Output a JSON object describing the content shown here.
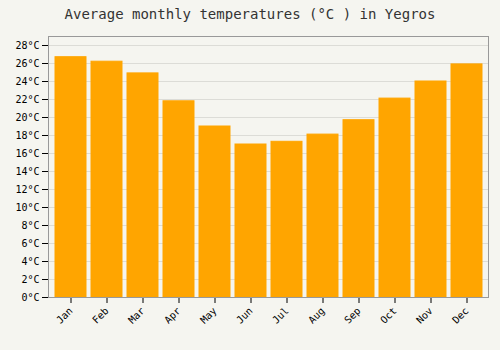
{
  "chart_data": {
    "type": "bar",
    "title": "Average monthly temperatures (°C ) in Yegros",
    "categories": [
      "Jan",
      "Feb",
      "Mar",
      "Apr",
      "May",
      "Jun",
      "Jul",
      "Aug",
      "Sep",
      "Oct",
      "Nov",
      "Dec"
    ],
    "values": [
      26.7,
      26.2,
      24.9,
      21.8,
      19.0,
      17.0,
      17.3,
      18.1,
      19.7,
      22.1,
      24.0,
      25.9
    ],
    "color": "#FFA500",
    "ylim": [
      0,
      29
    ],
    "yticks": [
      {
        "value": 0,
        "label": "0°C"
      },
      {
        "value": 2,
        "label": "2°C"
      },
      {
        "value": 4,
        "label": "4°C"
      },
      {
        "value": 6,
        "label": "6°C"
      },
      {
        "value": 8,
        "label": "8°C"
      },
      {
        "value": 10,
        "label": "10°C"
      },
      {
        "value": 12,
        "label": "12°C"
      },
      {
        "value": 14,
        "label": "14°C"
      },
      {
        "value": 16,
        "label": "16°C"
      },
      {
        "value": 18,
        "label": "18°C"
      },
      {
        "value": 20,
        "label": "20°C"
      },
      {
        "value": 22,
        "label": "22°C"
      },
      {
        "value": 24,
        "label": "24°C"
      },
      {
        "value": 26,
        "label": "26°C"
      },
      {
        "value": 28,
        "label": "28°C"
      }
    ],
    "grid": true
  }
}
